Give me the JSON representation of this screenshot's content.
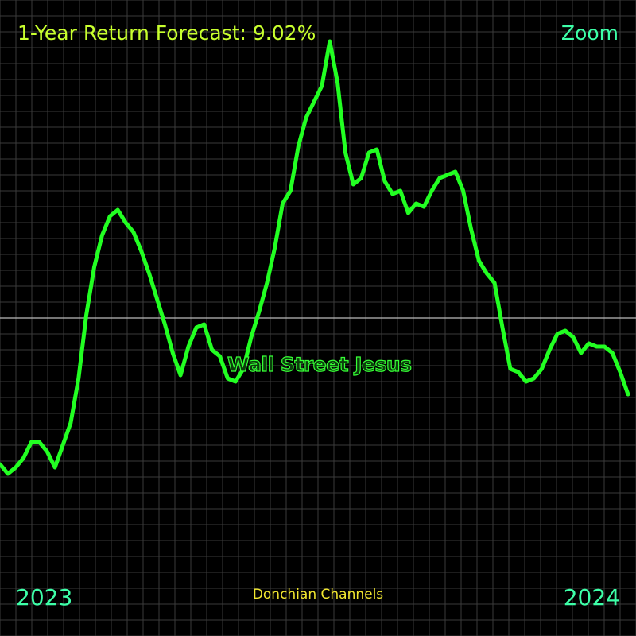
{
  "header": {
    "title": "1-Year Return Forecast: 9.02%",
    "zoom_label": "Zoom"
  },
  "watermark": "Wall Street Jesus",
  "footer": {
    "start_label": "2023",
    "end_label": "2024",
    "caption": "Donchian Channels"
  },
  "colors": {
    "background": "#000000",
    "grid": "#3a3a3a",
    "series": "#22ff22",
    "reference_line": "#bbbbbb",
    "title": "#c8ff2e",
    "accent": "#3dffa8",
    "caption": "#f2e830"
  },
  "chart_data": {
    "type": "line",
    "title": "1-Year Return Forecast: 9.02%",
    "xlabel": "",
    "ylabel": "",
    "grid": true,
    "legend": "none",
    "x_range": [
      "2023",
      "2024"
    ],
    "reference_line": 0,
    "ylim": [
      -10,
      10
    ],
    "series": [
      {
        "values": [
          -4.6,
          -4.9,
          -4.7,
          -4.4,
          -3.9,
          -3.9,
          -4.2,
          -4.7,
          -4.0,
          -3.3,
          -1.9,
          0.1,
          1.6,
          2.6,
          3.2,
          3.4,
          3.0,
          2.7,
          2.1,
          1.4,
          0.6,
          -0.2,
          -1.1,
          -1.8,
          -0.9,
          -0.3,
          -0.2,
          -1.0,
          -1.2,
          -1.9,
          -2.0,
          -1.6,
          -0.6,
          0.2,
          1.1,
          2.2,
          3.6,
          4.0,
          5.4,
          6.3,
          6.8,
          7.3,
          8.7,
          7.4,
          5.2,
          4.2,
          4.4,
          5.2,
          5.3,
          4.3,
          3.9,
          4.0,
          3.3,
          3.6,
          3.5,
          4.0,
          4.4,
          4.5,
          4.6,
          4.0,
          2.8,
          1.8,
          1.4,
          1.1,
          -0.3,
          -1.6,
          -1.7,
          -2.0,
          -1.9,
          -1.6,
          -1.0,
          -0.5,
          -0.4,
          -0.6,
          -1.1,
          -0.8,
          -0.9,
          -0.9,
          -1.1,
          -1.7,
          -2.4
        ]
      }
    ]
  }
}
